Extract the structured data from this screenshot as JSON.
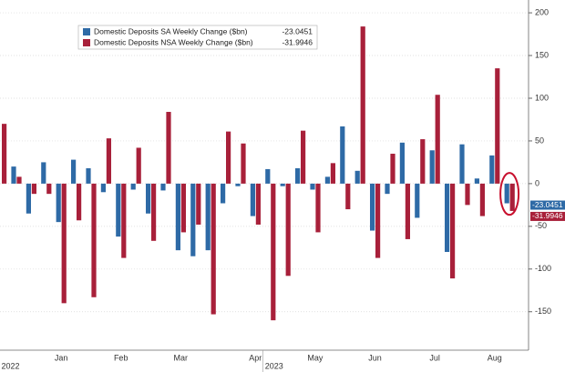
{
  "chart_data": {
    "type": "bar",
    "series": [
      {
        "name": "Domestic Deposits SA Weekly Change ($bn)",
        "color": "#2e6aa6",
        "values": [
          null,
          20,
          -35,
          25,
          -45,
          28,
          18,
          -10,
          -62,
          -7,
          -35,
          -8,
          -78,
          -85,
          -78,
          -23,
          -3,
          -38,
          17,
          -3,
          18,
          -7,
          8,
          67,
          15,
          -55,
          -12,
          48,
          -40,
          39,
          -80,
          46,
          6,
          33,
          -23.0451
        ]
      },
      {
        "name": "Domestic Deposits NSA Weekly Change ($bn)",
        "color": "#a8203a",
        "values": [
          70,
          8,
          -12,
          -12,
          -140,
          -43,
          -133,
          53,
          -87,
          42,
          -67,
          84,
          -57,
          -48,
          -153,
          61,
          47,
          -48,
          -160,
          -108,
          62,
          -57,
          24,
          -30,
          184,
          -87,
          35,
          -65,
          52,
          104,
          -111,
          -25,
          -38,
          135,
          -31.9946
        ]
      }
    ],
    "x_labels": [
      {
        "label": "Jan",
        "index": 4
      },
      {
        "label": "Feb",
        "index": 8
      },
      {
        "label": "Mar",
        "index": 12
      },
      {
        "label": "Apr",
        "index": 17
      },
      {
        "label": "May",
        "index": 21
      },
      {
        "label": "Jun",
        "index": 25
      },
      {
        "label": "Jul",
        "index": 29
      },
      {
        "label": "Aug",
        "index": 33
      }
    ],
    "years": [
      {
        "label": "2022",
        "index": 0
      },
      {
        "label": "2023",
        "index": 18
      }
    ],
    "ylim": [
      -195,
      215
    ],
    "yticks": [
      -150,
      -100,
      -50,
      0,
      50,
      100,
      150,
      200
    ],
    "grid": true,
    "legend": "top-left"
  }
}
